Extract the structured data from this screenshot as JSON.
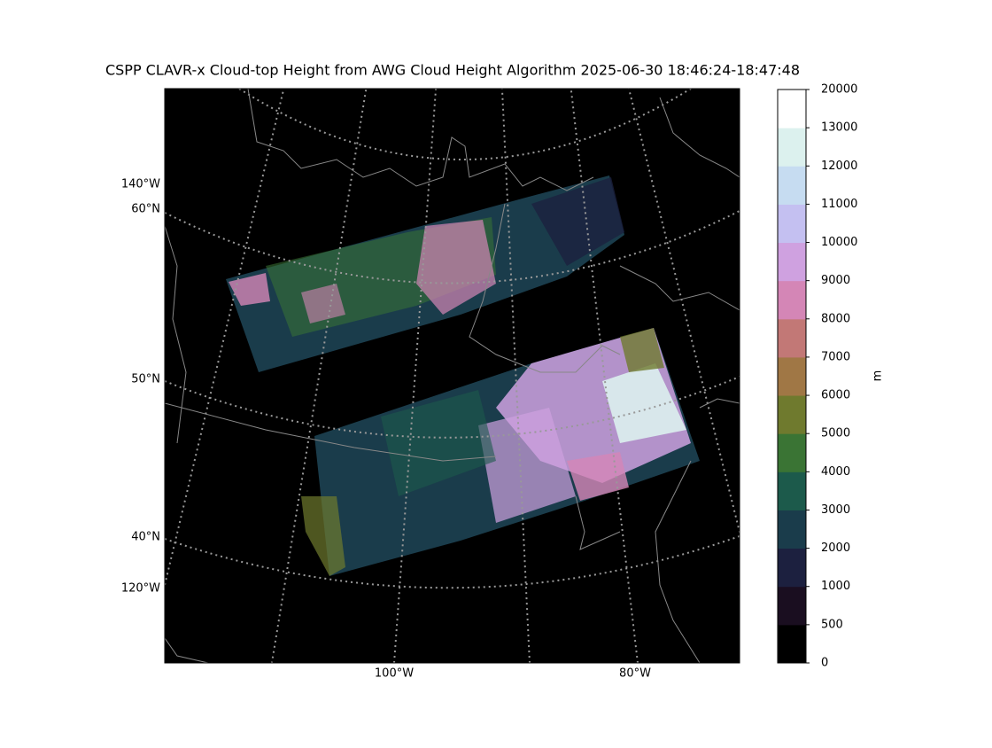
{
  "title": "CSPP CLAVR-x Cloud-top Height from AWG Cloud Height Algorithm 2025-06-30 18:46:24-18:47:48",
  "map": {
    "lat_labels": [
      "60°N",
      "50°N",
      "40°N"
    ],
    "lon_labels_left": [
      "140°W",
      "120°W"
    ],
    "lon_labels_bottom": [
      "100°W",
      "80°W"
    ]
  },
  "colorbar": {
    "label": "m",
    "ticks": [
      0,
      500,
      1000,
      2000,
      3000,
      4000,
      5000,
      6000,
      7000,
      8000,
      9000,
      10000,
      11000,
      12000,
      13000,
      20000
    ],
    "colors": [
      "#000000",
      "#1a0e20",
      "#1c203f",
      "#1a3c4b",
      "#1c5a4b",
      "#3a7434",
      "#6f7a2e",
      "#a07745",
      "#c27876",
      "#d486b6",
      "#cfa1e0",
      "#c4c0f1",
      "#c6dcf1",
      "#dcf1ee",
      "#ffffff"
    ]
  }
}
